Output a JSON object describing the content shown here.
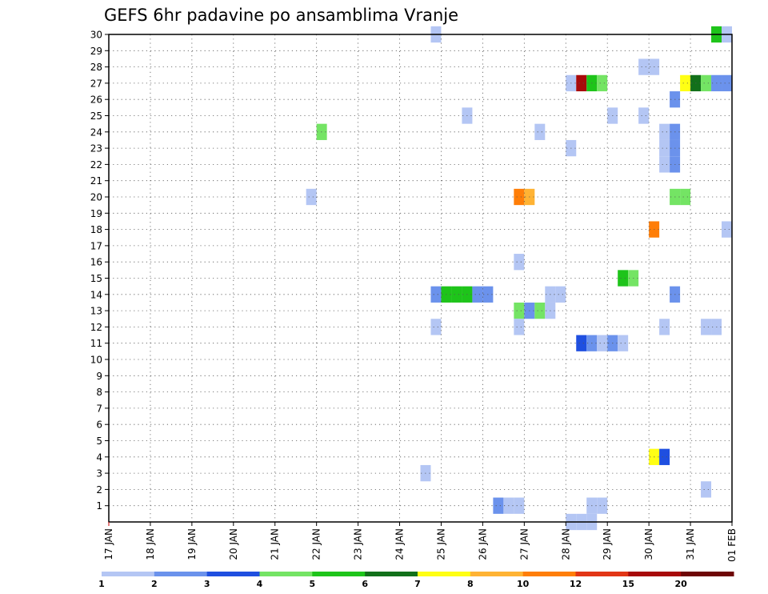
{
  "chart_data": {
    "type": "heatmap",
    "title": "GEFS 6hr padavine po ansamblima Vranje",
    "xlabel": "",
    "ylabel": "",
    "x_ticks": [
      "17 JAN",
      "18 JAN",
      "19 JAN",
      "20 JAN",
      "21 JAN",
      "22 JAN",
      "23 JAN",
      "24 JAN",
      "25 JAN",
      "26 JAN",
      "27 JAN",
      "28 JAN",
      "29 JAN",
      "30 JAN",
      "31 JAN",
      "01 FEB"
    ],
    "x_range_days": [
      0,
      15
    ],
    "y_ticks": [
      1,
      2,
      3,
      4,
      5,
      6,
      7,
      8,
      9,
      10,
      11,
      12,
      13,
      14,
      15,
      16,
      17,
      18,
      19,
      20,
      21,
      22,
      23,
      24,
      25,
      26,
      27,
      28,
      29,
      30
    ],
    "y_range": [
      0,
      30
    ],
    "grid": true,
    "cell_width_days": 0.25,
    "legend": {
      "position": "bottom",
      "levels": [
        "1",
        "2",
        "3",
        "4",
        "5",
        "6",
        "7",
        "8",
        "10",
        "12",
        "15",
        "20"
      ],
      "colors": [
        "#b4c6f4",
        "#6b92ec",
        "#1f4fe0",
        "#74e464",
        "#1ec41a",
        "#12701a",
        "#ffff14",
        "#ffb334",
        "#ff7e08",
        "#e23616",
        "#a80a0a",
        "#6e0606"
      ]
    },
    "cells": [
      {
        "day": 7.75,
        "member": 30,
        "level": 0
      },
      {
        "day": 14.5,
        "member": 30,
        "level": 4
      },
      {
        "day": 14.75,
        "member": 30,
        "level": 0
      },
      {
        "day": 12.75,
        "member": 28,
        "level": 0
      },
      {
        "day": 13.0,
        "member": 28,
        "level": 0
      },
      {
        "day": 11.0,
        "member": 27,
        "level": 0
      },
      {
        "day": 11.25,
        "member": 27,
        "level": 10
      },
      {
        "day": 11.5,
        "member": 27,
        "level": 4
      },
      {
        "day": 11.75,
        "member": 27,
        "level": 3
      },
      {
        "day": 13.75,
        "member": 27,
        "level": 6
      },
      {
        "day": 14.0,
        "member": 27,
        "level": 5
      },
      {
        "day": 14.25,
        "member": 27,
        "level": 3
      },
      {
        "day": 14.5,
        "member": 27,
        "level": 1
      },
      {
        "day": 14.75,
        "member": 27,
        "level": 1
      },
      {
        "day": 13.5,
        "member": 26,
        "level": 1
      },
      {
        "day": 8.5,
        "member": 25,
        "level": 0
      },
      {
        "day": 12.0,
        "member": 25,
        "level": 0
      },
      {
        "day": 12.75,
        "member": 25,
        "level": 0
      },
      {
        "day": 5.0,
        "member": 24,
        "level": 3
      },
      {
        "day": 10.25,
        "member": 24,
        "level": 0
      },
      {
        "day": 13.25,
        "member": 24,
        "level": 0
      },
      {
        "day": 13.5,
        "member": 24,
        "level": 1
      },
      {
        "day": 13.25,
        "member": 23,
        "level": 0
      },
      {
        "day": 13.5,
        "member": 23,
        "level": 1
      },
      {
        "day": 11.0,
        "member": 23,
        "level": 0
      },
      {
        "day": 13.25,
        "member": 22,
        "level": 0
      },
      {
        "day": 13.5,
        "member": 22,
        "level": 1
      },
      {
        "day": 4.75,
        "member": 20,
        "level": 0
      },
      {
        "day": 9.75,
        "member": 20,
        "level": 8
      },
      {
        "day": 10.0,
        "member": 20,
        "level": 7
      },
      {
        "day": 13.5,
        "member": 20,
        "level": 3
      },
      {
        "day": 13.75,
        "member": 20,
        "level": 3
      },
      {
        "day": 13.0,
        "member": 18,
        "level": 8
      },
      {
        "day": 14.75,
        "member": 18,
        "level": 0
      },
      {
        "day": 9.75,
        "member": 16,
        "level": 0
      },
      {
        "day": 12.25,
        "member": 15,
        "level": 4
      },
      {
        "day": 12.5,
        "member": 15,
        "level": 3
      },
      {
        "day": 7.75,
        "member": 14,
        "level": 1
      },
      {
        "day": 8.0,
        "member": 14,
        "level": 4
      },
      {
        "day": 8.25,
        "member": 14,
        "level": 4
      },
      {
        "day": 8.5,
        "member": 14,
        "level": 4
      },
      {
        "day": 8.75,
        "member": 14,
        "level": 1
      },
      {
        "day": 9.0,
        "member": 14,
        "level": 1
      },
      {
        "day": 10.5,
        "member": 14,
        "level": 0
      },
      {
        "day": 10.75,
        "member": 14,
        "level": 0
      },
      {
        "day": 13.5,
        "member": 14,
        "level": 1
      },
      {
        "day": 9.75,
        "member": 13,
        "level": 3
      },
      {
        "day": 10.0,
        "member": 13,
        "level": 1
      },
      {
        "day": 10.25,
        "member": 13,
        "level": 3
      },
      {
        "day": 10.5,
        "member": 13,
        "level": 0
      },
      {
        "day": 7.75,
        "member": 12,
        "level": 0
      },
      {
        "day": 9.75,
        "member": 12,
        "level": 0
      },
      {
        "day": 13.25,
        "member": 12,
        "level": 0
      },
      {
        "day": 14.25,
        "member": 12,
        "level": 0
      },
      {
        "day": 14.5,
        "member": 12,
        "level": 0
      },
      {
        "day": 11.25,
        "member": 11,
        "level": 2
      },
      {
        "day": 11.5,
        "member": 11,
        "level": 1
      },
      {
        "day": 11.75,
        "member": 11,
        "level": 0
      },
      {
        "day": 12.0,
        "member": 11,
        "level": 1
      },
      {
        "day": 12.25,
        "member": 11,
        "level": 0
      },
      {
        "day": 13.0,
        "member": 4,
        "level": 6
      },
      {
        "day": 13.25,
        "member": 4,
        "level": 2
      },
      {
        "day": 7.5,
        "member": 3,
        "level": 0
      },
      {
        "day": 14.25,
        "member": 2,
        "level": 0
      },
      {
        "day": 9.25,
        "member": 1,
        "level": 1
      },
      {
        "day": 9.5,
        "member": 1,
        "level": 0
      },
      {
        "day": 9.75,
        "member": 1,
        "level": 0
      },
      {
        "day": 11.5,
        "member": 1,
        "level": 0
      },
      {
        "day": 11.75,
        "member": 1,
        "level": 0
      },
      {
        "day": 11.0,
        "member": 0,
        "level": 0
      },
      {
        "day": 11.25,
        "member": 0,
        "level": 0
      },
      {
        "day": 11.5,
        "member": 0,
        "level": 0
      }
    ]
  }
}
